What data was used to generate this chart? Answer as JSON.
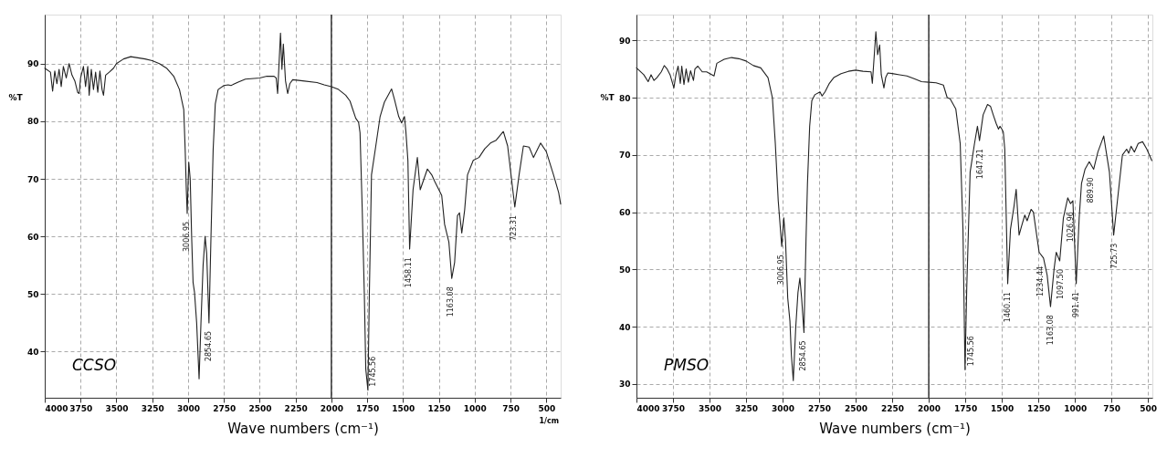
{
  "chart_data": [
    {
      "type": "line",
      "xlabel": "Wave numbers (cm⁻¹)",
      "ylabel": "%T",
      "xlim": [
        4000,
        400
      ],
      "ylim": [
        32,
        98.5
      ],
      "xticks": [
        4000,
        3750,
        3500,
        3250,
        3000,
        2750,
        2500,
        2250,
        2000,
        1750,
        1500,
        1250,
        1000,
        750,
        500
      ],
      "yticks": [
        40,
        50,
        60,
        70,
        80,
        90
      ],
      "grid": true,
      "marker": "none",
      "line_style": "solid",
      "ref_lines": [
        {
          "axis": "x",
          "value": 2000,
          "color": "#333333",
          "line_style": "solid"
        }
      ],
      "series": [
        {
          "color": "#222222",
          "x": [
            4000,
            3960,
            3945,
            3930,
            3915,
            3900,
            3885,
            3870,
            3850,
            3830,
            3810,
            3790,
            3770,
            3760,
            3750,
            3730,
            3715,
            3700,
            3690,
            3675,
            3660,
            3645,
            3630,
            3615,
            3600,
            3590,
            3575,
            3550,
            3520,
            3500,
            3450,
            3400,
            3350,
            3300,
            3250,
            3200,
            3150,
            3100,
            3060,
            3030,
            3020,
            3012,
            3006,
            2995,
            2985,
            2975,
            2965,
            2955,
            2940,
            2923,
            2910,
            2895,
            2881,
            2870,
            2854,
            2840,
            2825,
            2810,
            2790,
            2750,
            2720,
            2700,
            2650,
            2600,
            2500,
            2450,
            2400,
            2385,
            2375,
            2355,
            2345,
            2335,
            2320,
            2305,
            2290,
            2270,
            2200,
            2100,
            2050,
            2000,
            1950,
            1900,
            1870,
            1850,
            1830,
            1810,
            1800,
            1785,
            1770,
            1760,
            1745,
            1735,
            1720,
            1690,
            1660,
            1630,
            1580,
            1560,
            1530,
            1510,
            1490,
            1480,
            1466,
            1454,
            1430,
            1400,
            1380,
            1330,
            1300,
            1280,
            1230,
            1210,
            1180,
            1160,
            1140,
            1120,
            1106,
            1090,
            1070,
            1050,
            1010,
            970,
            930,
            890,
            850,
            800,
            770,
            720,
            690,
            660,
            620,
            590,
            540,
            500,
            450,
            414,
            400
          ],
          "values": [
            89.2,
            88.5,
            85.2,
            88.7,
            86.5,
            89,
            86,
            89.5,
            87.5,
            90,
            88,
            87,
            85,
            84.8,
            87.5,
            89.5,
            86,
            89.5,
            84.5,
            89,
            85.5,
            88.5,
            85,
            88.7,
            85.5,
            84.5,
            88,
            88.5,
            89.2,
            90,
            90.8,
            91.2,
            91,
            90.8,
            90.5,
            90,
            89.2,
            87.8,
            85.5,
            82,
            75,
            68,
            64,
            72.9,
            70,
            60,
            52,
            50.3,
            45,
            35.3,
            45,
            55,
            60,
            57,
            45,
            60,
            75,
            83,
            85.5,
            86.2,
            86.3,
            86.2,
            86.8,
            87.3,
            87.5,
            87.8,
            87.8,
            87.5,
            84.8,
            95.3,
            89,
            93.4,
            87,
            84.8,
            86.5,
            87.2,
            87,
            86.7,
            86.3,
            86,
            85.5,
            84.5,
            83.5,
            82,
            80.5,
            79.8,
            78,
            65,
            50,
            37,
            33.3,
            50,
            70.7,
            75.7,
            80.8,
            83.3,
            85.6,
            83.8,
            80.8,
            79.7,
            80.8,
            78.2,
            73.2,
            57.8,
            68.1,
            73.7,
            68.1,
            71.7,
            70.7,
            69.6,
            67.1,
            62.1,
            59,
            52.7,
            55.5,
            63.6,
            64.1,
            60.6,
            64.6,
            70.7,
            73.2,
            73.7,
            75.2,
            76.2,
            76.7,
            78.2,
            75.7,
            65.1,
            70.7,
            75.7,
            75.5,
            73.7,
            76.2,
            74.7,
            70.7,
            67.6,
            65.6
          ]
        }
      ],
      "annotations": [
        "CCSO",
        "1/cm",
        {
          "text": "3006.95",
          "x": 3006.95,
          "y": 64
        },
        {
          "text": "2854.65",
          "x": 2854.65,
          "y": 45
        },
        {
          "text": "1745.56",
          "x": 1745.56,
          "y": 33.3
        },
        {
          "text": "1458.11",
          "x": 1458.11,
          "y": 57.8
        },
        {
          "text": "1163.08",
          "x": 1163.08,
          "y": 52.7
        },
        {
          "text": "723.31",
          "x": 723.31,
          "y": 65.1
        }
      ]
    },
    {
      "type": "line",
      "xlabel": "Wave numbers (cm⁻¹)",
      "ylabel": "%T",
      "xlim": [
        4000,
        470
      ],
      "ylim": [
        27.6,
        94.5
      ],
      "xticks": [
        4000,
        3750,
        3500,
        3250,
        3000,
        2750,
        2500,
        2250,
        2000,
        1750,
        1500,
        1250,
        1000,
        750,
        500
      ],
      "yticks": [
        30,
        40,
        50,
        60,
        70,
        80,
        90
      ],
      "grid": true,
      "marker": "none",
      "line_style": "solid",
      "ref_lines": [
        {
          "axis": "x",
          "value": 2000,
          "color": "#333333",
          "line_style": "solid"
        }
      ],
      "series": [
        {
          "color": "#222222",
          "x": [
            4000,
            3950,
            3920,
            3900,
            3880,
            3860,
            3830,
            3810,
            3790,
            3770,
            3744,
            3730,
            3715,
            3700,
            3690,
            3675,
            3660,
            3645,
            3630,
            3610,
            3600,
            3580,
            3550,
            3520,
            3469,
            3450,
            3400,
            3350,
            3300,
            3250,
            3200,
            3150,
            3100,
            3070,
            3050,
            3030,
            3006,
            2992,
            2980,
            2965,
            2950,
            2940,
            2927,
            2910,
            2895,
            2882,
            2870,
            2854,
            2840,
            2830,
            2815,
            2800,
            2780,
            2744,
            2730,
            2710,
            2680,
            2650,
            2600,
            2550,
            2500,
            2450,
            2395,
            2386,
            2362,
            2350,
            2336,
            2325,
            2307,
            2295,
            2280,
            2250,
            2200,
            2150,
            2100,
            2050,
            2000,
            1950,
            1900,
            1874,
            1854,
            1815,
            1785,
            1766,
            1752,
            1740,
            1717,
            1687,
            1667,
            1653,
            1628,
            1598,
            1578,
            1559,
            1539,
            1523,
            1513,
            1500,
            1490,
            1480,
            1460,
            1441,
            1417,
            1402,
            1382,
            1366,
            1343,
            1327,
            1300,
            1284,
            1245,
            1215,
            1190,
            1167,
            1143,
            1128,
            1104,
            1079,
            1049,
            1030,
            1014,
            991,
            971,
            955,
            931,
            902,
            872,
            843,
            803,
            764,
            735,
            705,
            675,
            646,
            632,
            616,
            593,
            567,
            537,
            508,
            474
          ],
          "values": [
            85.2,
            84,
            82.8,
            84,
            83,
            83.5,
            84.5,
            85.6,
            85,
            84,
            81.7,
            84,
            85.5,
            82.5,
            85.5,
            82.3,
            85,
            82.7,
            84.7,
            83,
            85,
            85.5,
            84.5,
            84.5,
            83.8,
            86,
            86.7,
            87,
            86.8,
            86.4,
            85.6,
            85.2,
            83.5,
            80,
            72,
            62,
            54,
            59,
            55,
            45,
            41,
            35,
            30.6,
            40,
            46,
            48.5,
            45,
            39,
            55,
            65,
            75,
            79.5,
            80.5,
            81,
            80.3,
            81,
            82.5,
            83.5,
            84.2,
            84.6,
            84.8,
            84.6,
            84.5,
            82.5,
            91.5,
            87.5,
            89.2,
            84,
            81.7,
            83.5,
            84.3,
            84.2,
            84,
            83.8,
            83.3,
            82.8,
            82.7,
            82.6,
            82.2,
            80,
            79.8,
            78,
            72,
            57,
            32.5,
            47,
            67,
            72,
            75,
            72.5,
            77,
            78.8,
            78.5,
            77,
            75.5,
            74.5,
            75,
            74.5,
            74,
            71,
            47.5,
            57,
            61,
            64,
            56,
            57.5,
            59.5,
            58.5,
            60.5,
            60,
            53,
            52,
            49,
            43.5,
            50,
            53,
            51.5,
            59,
            62.5,
            61.5,
            62,
            47.5,
            59,
            65,
            67.5,
            68.8,
            67.5,
            70.5,
            73.3,
            67,
            56,
            63,
            70,
            71,
            70.3,
            71.5,
            70.5,
            72,
            72.3,
            71,
            69
          ]
        }
      ],
      "annotations": [
        "PMSO",
        {
          "text": "3006.95",
          "x": 3006.95,
          "y": 54
        },
        {
          "text": "2854.65",
          "x": 2854.65,
          "y": 39
        },
        {
          "text": "1745.56",
          "x": 1745.56,
          "y": 32.5
        },
        {
          "text": "1647.21",
          "x": 1647.21,
          "y": 72.5
        },
        {
          "text": "1460.11",
          "x": 1460.11,
          "y": 47.5
        },
        {
          "text": "1234.44",
          "x": 1234.44,
          "y": 52
        },
        {
          "text": "1163.08",
          "x": 1163.08,
          "y": 43.5
        },
        {
          "text": "1097.50",
          "x": 1097.5,
          "y": 51.5
        },
        {
          "text": "1026.96",
          "x": 1026.96,
          "y": 61.5
        },
        {
          "text": "991.41",
          "x": 991.41,
          "y": 47.5
        },
        {
          "text": "889.90",
          "x": 889.9,
          "y": 67.5
        },
        {
          "text": "725.73",
          "x": 725.73,
          "y": 56
        }
      ]
    }
  ]
}
